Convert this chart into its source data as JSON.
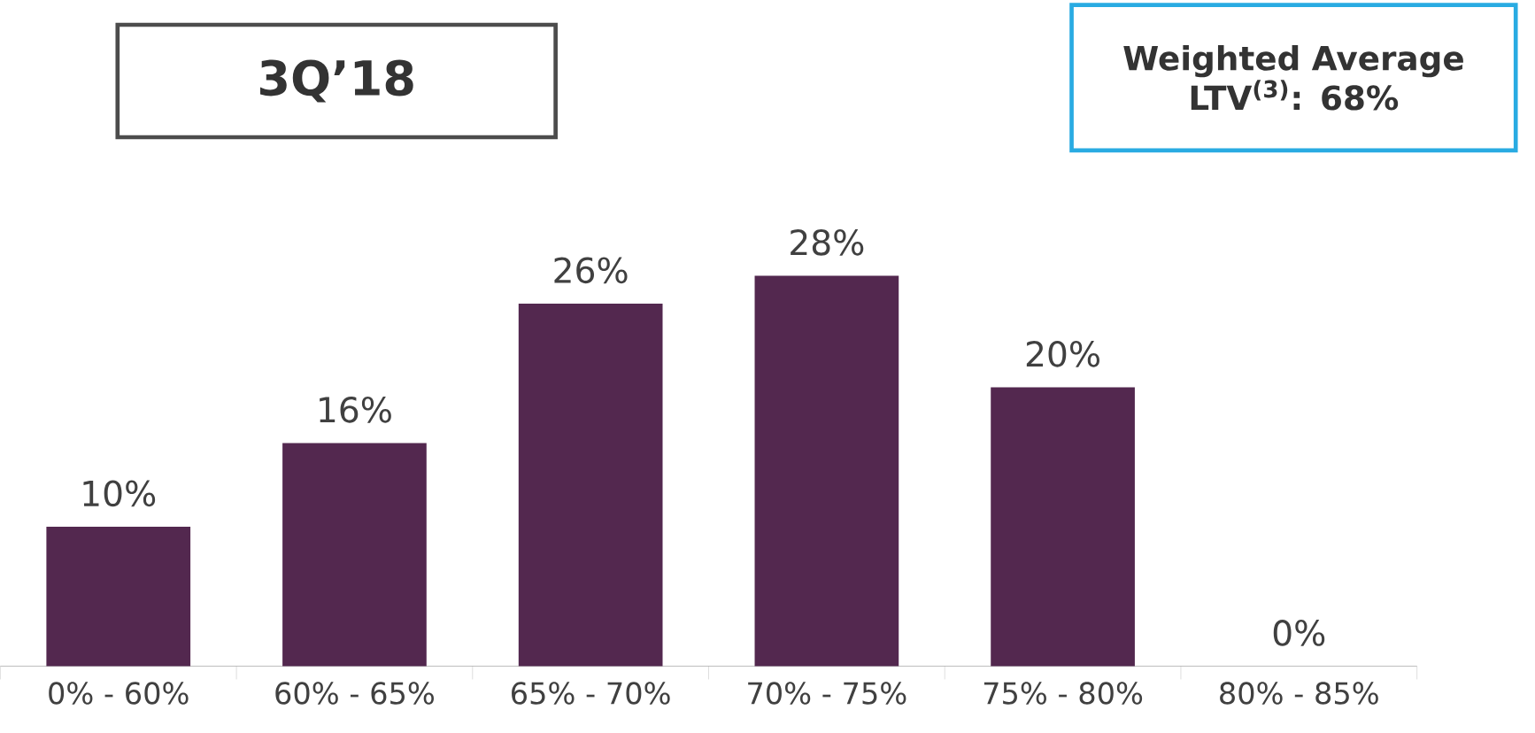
{
  "chart_data": {
    "type": "bar",
    "title": "3Q’18",
    "annotations": [
      "Weighted Average LTV$^{(3)}$: 68%"
    ],
    "categories": [
      "0% - 60%",
      "60% - 65%",
      "65% - 70%",
      "70% - 75%",
      "75% - 80%",
      "80% - 85%"
    ],
    "values": [
      10,
      16,
      26,
      28,
      20,
      0
    ],
    "value_labels": [
      "10%",
      "16%",
      "26%",
      "28%",
      "20%",
      "0%"
    ],
    "color": "#53284f"
  }
}
